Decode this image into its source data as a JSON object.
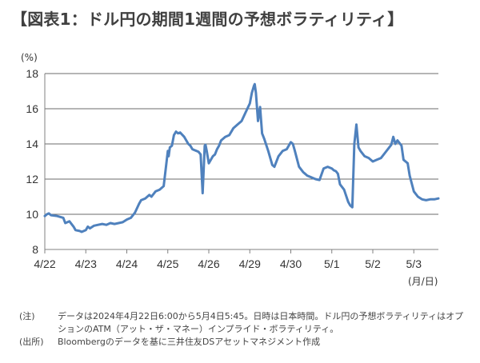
{
  "title": "【図表1：ドル円の期間1週間の予想ボラティリティ】",
  "y_unit": "(%)",
  "x_unit": "(月/日)",
  "notes": [
    {
      "label": "(注)",
      "text": "データは2024年4月22日6:00から5月4日5:45。日時は日本時間。ドル円の予想ボラティリティはオプションのATM（アット・ザ・マネー）インプライド・ボラティリティ。"
    },
    {
      "label": "(出所)",
      "text": "Bloombergのデータを基に三井住友DSアセットマネジメント作成"
    }
  ],
  "colors": {
    "line": "#4f81bd",
    "grid": "#6b6b6b",
    "axis": "#808080"
  },
  "chart_data": {
    "type": "line",
    "title": "【図表1：ドル円の期間1週間の予想ボラティリティ】",
    "xlabel": "(月/日)",
    "ylabel": "(%)",
    "ylim": [
      8,
      18
    ],
    "yticks": [
      8,
      10,
      12,
      14,
      16,
      18
    ],
    "xlim": [
      0,
      9.6
    ],
    "categories": [
      "4/22",
      "4/23",
      "4/24",
      "4/25",
      "4/26",
      "4/29",
      "4/30",
      "5/1",
      "5/2",
      "5/3"
    ],
    "grid": true,
    "series": [
      {
        "x": [
          0.0,
          0.05,
          0.1,
          0.15,
          0.3,
          0.45,
          0.5,
          0.6,
          0.7,
          0.75,
          0.85,
          0.9,
          1.0,
          1.05,
          1.1,
          1.2,
          1.3,
          1.4,
          1.5,
          1.6,
          1.7,
          1.8,
          1.9,
          2.0,
          2.1,
          2.2,
          2.3,
          2.35,
          2.45,
          2.55,
          2.6,
          2.7,
          2.8,
          2.9,
          3.0,
          3.02,
          3.05,
          3.1,
          3.15,
          3.2,
          3.25,
          3.3,
          3.4,
          3.5,
          3.55,
          3.6,
          3.65,
          3.7,
          3.75,
          3.8,
          3.85,
          3.9,
          3.92,
          3.95,
          4.0,
          4.1,
          4.15,
          4.2,
          4.25,
          4.3,
          4.4,
          4.5,
          4.6,
          4.7,
          4.8,
          4.9,
          5.0,
          5.05,
          5.1,
          5.12,
          5.15,
          5.2,
          5.25,
          5.3,
          5.35,
          5.45,
          5.55,
          5.6,
          5.7,
          5.8,
          5.9,
          6.0,
          6.05,
          6.1,
          6.2,
          6.3,
          6.4,
          6.5,
          6.6,
          6.7,
          6.8,
          6.9,
          7.0,
          7.05,
          7.1,
          7.15,
          7.2,
          7.3,
          7.4,
          7.45,
          7.5,
          7.55,
          7.6,
          7.65,
          7.7,
          7.8,
          7.9,
          8.0,
          8.1,
          8.2,
          8.3,
          8.4,
          8.45,
          8.5,
          8.55,
          8.6,
          8.7,
          8.75,
          8.8,
          8.85,
          8.9,
          9.0,
          9.1,
          9.2,
          9.3,
          9.4,
          9.5,
          9.6
        ],
        "y": [
          9.9,
          10.0,
          10.05,
          9.95,
          9.9,
          9.8,
          9.5,
          9.6,
          9.3,
          9.1,
          9.05,
          9.0,
          9.1,
          9.3,
          9.2,
          9.35,
          9.4,
          9.45,
          9.4,
          9.5,
          9.45,
          9.5,
          9.55,
          9.7,
          9.8,
          10.1,
          10.6,
          10.8,
          10.9,
          11.1,
          11.0,
          11.3,
          11.4,
          11.6,
          13.6,
          13.3,
          13.8,
          13.9,
          14.5,
          14.7,
          14.6,
          14.65,
          14.4,
          14.0,
          13.9,
          13.7,
          13.65,
          13.6,
          13.55,
          13.4,
          11.2,
          13.9,
          13.95,
          13.6,
          12.9,
          13.3,
          13.4,
          13.7,
          13.9,
          14.2,
          14.4,
          14.5,
          14.9,
          15.1,
          15.3,
          15.8,
          16.3,
          16.9,
          17.3,
          17.4,
          16.9,
          15.3,
          16.1,
          14.6,
          14.3,
          13.6,
          12.8,
          12.7,
          13.3,
          13.6,
          13.7,
          14.1,
          14.0,
          13.6,
          12.7,
          12.4,
          12.2,
          12.1,
          12.0,
          11.95,
          12.6,
          12.7,
          12.6,
          12.5,
          12.45,
          12.3,
          11.7,
          11.4,
          10.7,
          10.5,
          10.4,
          14.0,
          15.1,
          13.8,
          13.6,
          13.3,
          13.2,
          13.0,
          13.1,
          13.2,
          13.5,
          13.8,
          13.95,
          14.4,
          14.0,
          14.2,
          13.9,
          13.1,
          13.0,
          12.9,
          12.2,
          11.3,
          11.0,
          10.85,
          10.8,
          10.85,
          10.85,
          10.9
        ]
      }
    ]
  }
}
